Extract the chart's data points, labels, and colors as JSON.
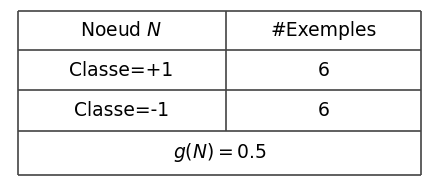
{
  "header": [
    "Noeud $N$",
    "#Exemples"
  ],
  "rows": [
    [
      "Classe=+1",
      "6"
    ],
    [
      "Classe=-1",
      "6"
    ]
  ],
  "footer": "$g(N) = 0.5$",
  "bg_color": "#ffffff",
  "border_color": "#444444",
  "text_color": "#000000",
  "header_fontsize": 13.5,
  "cell_fontsize": 13.5,
  "footer_fontsize": 13.5,
  "col_split": 0.515,
  "row_tops": [
    1.0,
    0.76,
    0.52,
    0.27,
    0.0
  ],
  "fig_width": 4.39,
  "fig_height": 1.86
}
